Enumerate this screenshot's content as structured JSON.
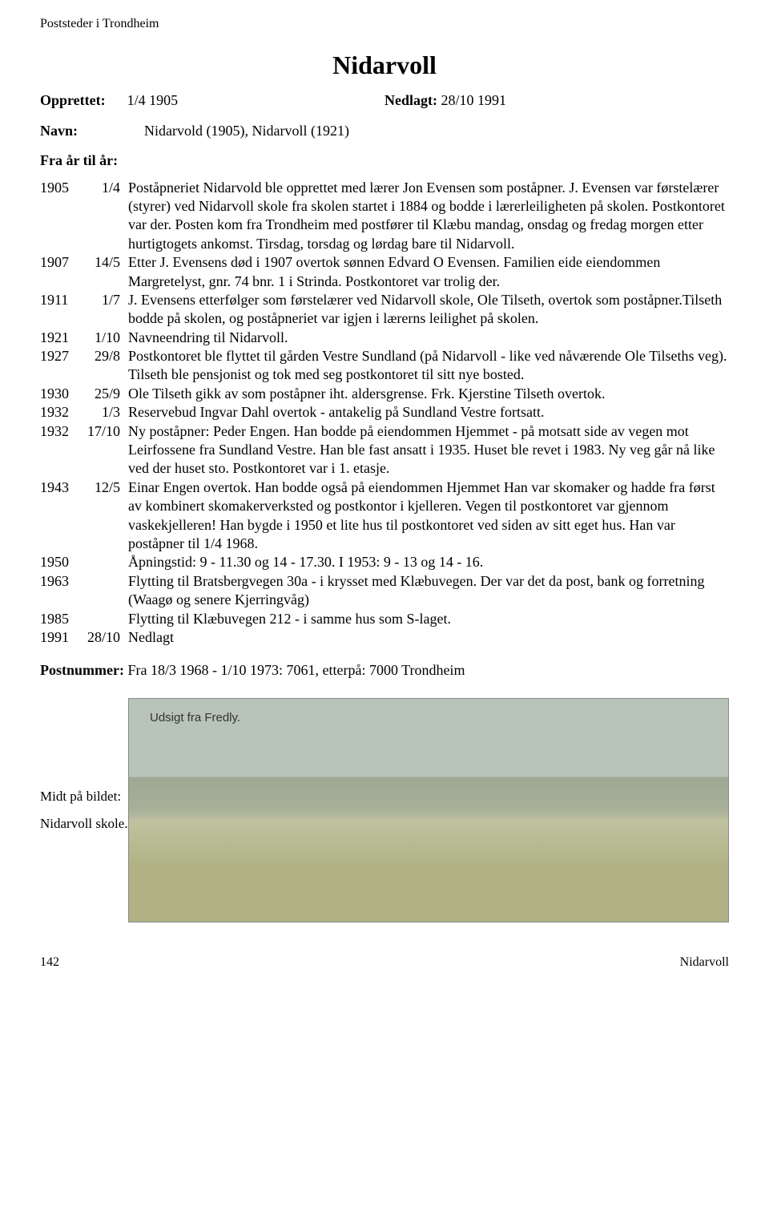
{
  "header": "Poststeder i Trondheim",
  "title": "Nidarvoll",
  "opprettet_label": "Opprettet:",
  "opprettet_value": "1/4 1905",
  "nedlagt_label": "Nedlagt:",
  "nedlagt_value": "28/10 1991",
  "navn_label": "Navn:",
  "navn_value": "Nidarvold (1905), Nidarvoll (1921)",
  "fra_label": "Fra år til år:",
  "entries": [
    {
      "year": "1905",
      "date": "1/4",
      "text": "Poståpneriet Nidarvold ble opprettet med lærer Jon Evensen som poståpner. J. Evensen var  førstelærer (styrer) ved Nidarvoll skole fra skolen startet i 1884 og bodde i lærerleiligheten på  skolen. Postkontoret var  der. Posten kom fra Trondheim med postfører til Klæbu mandag, onsdag og fredag morgen etter hurtigtogets ankomst. Tirsdag, torsdag og lørdag bare til Nidarvoll."
    },
    {
      "year": "1907",
      "date": "14/5",
      "text": "Etter J. Evensens død i 1907 overtok sønnen Edvard O Evensen. Familien eide eiendommen Margretelyst, gnr. 74 bnr. 1 i Strinda. Postkontoret var trolig der."
    },
    {
      "year": "1911",
      "date": "1/7",
      "text": "J. Evensens etterfølger som førstelærer ved Nidarvoll skole, Ole Tilseth, overtok som poståpner.Tilseth bodde  på skolen, og poståpneriet var igjen i lærerns leilighet på skolen."
    },
    {
      "year": "1921",
      "date": "1/10",
      "text": "Navneendring til Nidarvoll."
    },
    {
      "year": "1927",
      "date": "29/8",
      "text": "Postkontoret ble flyttet til gården Vestre Sundland (på Nidarvoll - like ved  nåværende Ole Tilseths veg). Tilseth ble pensjonist og tok med seg postkontoret til sitt nye bosted."
    },
    {
      "year": "1930",
      "date": "25/9",
      "text": "Ole Tilseth gikk av som poståpner iht. aldersgrense. Frk. Kjerstine Tilseth overtok."
    },
    {
      "year": "1932",
      "date": "1/3",
      "text": "Reservebud Ingvar Dahl  overtok -  antakelig på Sundland Vestre fortsatt."
    },
    {
      "year": "1932",
      "date": "17/10",
      "text": "Ny poståpner: Peder Engen. Han bodde  på eiendommen Hjemmet - på motsatt side av vegen mot Leirfossene fra Sundland Vestre. Han ble fast ansatt i 1935. Huset ble revet i 1983. Ny veg går nå like ved der huset sto. Postkontoret var i 1. etasje."
    },
    {
      "year": "1943",
      "date": "12/5",
      "text": "Einar Engen overtok. Han  bodde også på eiendommen Hjemmet  Han var skomaker og hadde fra først av kombinert skomakerverksted og postkontor i kjelleren. Vegen til postkontoret var gjennom vaskekjelleren! Han bygde i 1950 et lite hus til postkontoret ved siden av sitt eget hus. Han var poståpner til 1/4  1968."
    },
    {
      "year": "1950",
      "date": "",
      "text": "Åpningstid: 9 - 11.30 og 14 - 17.30. I 1953: 9 - 13 og 14 - 16."
    },
    {
      "year": "1963",
      "date": "",
      "text": "Flytting til Bratsbergvegen 30a - i krysset med Klæbuvegen. Der var det da post, bank og forretning (Waagø og senere Kjerringvåg)"
    },
    {
      "year": "1985",
      "date": "",
      "text": "Flytting til Klæbuvegen 212 - i samme hus som S-laget."
    },
    {
      "year": "1991",
      "date": "28/10",
      "text": "Nedlagt"
    }
  ],
  "postnummer_label": "Postnummer:",
  "postnummer_value": "Fra 18/3 1968 - 1/10 1973: 7061, etterpå: 7000 Trondheim",
  "image": {
    "caption_line1": "Midt på bildet:",
    "caption_line2": "Nidarvoll skole.",
    "inner_label": "Udsigt fra Fredly."
  },
  "footer": {
    "page": "142",
    "section": "Nidarvoll"
  }
}
